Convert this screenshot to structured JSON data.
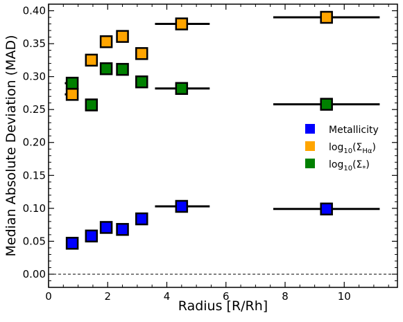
{
  "chart_data": {
    "type": "scatter",
    "title": "",
    "xlabel": "Radius [R/Rh]",
    "ylabel": "Median Absolute Deviation (MAD)",
    "xlim": [
      0,
      11.8
    ],
    "ylim": [
      -0.02,
      0.41
    ],
    "xticks": [
      0,
      2,
      4,
      6,
      8,
      10
    ],
    "yticks": [
      0.0,
      0.05,
      0.1,
      0.15,
      0.2,
      0.25,
      0.3,
      0.35,
      0.4
    ],
    "xtick_labels": [
      "0",
      "2",
      "4",
      "6",
      "8",
      "10"
    ],
    "ytick_labels": [
      "0.00",
      "0.05",
      "0.10",
      "0.15",
      "0.20",
      "0.25",
      "0.30",
      "0.35",
      "0.40"
    ],
    "reference_line": {
      "y": 0.0,
      "style": "dashed"
    },
    "grid": false,
    "legend_position": "center-right",
    "series": [
      {
        "name": "Metallicity",
        "color": "#0000ff",
        "points": [
          {
            "x": 0.8,
            "y": 0.047,
            "xerr": [
              0.7,
              1.0
            ]
          },
          {
            "x": 1.45,
            "y": 0.058
          },
          {
            "x": 1.95,
            "y": 0.071
          },
          {
            "x": 2.5,
            "y": 0.068
          },
          {
            "x": 3.15,
            "y": 0.084,
            "xerr": [
              3.05,
              3.35
            ]
          },
          {
            "x": 4.5,
            "y": 0.103,
            "xerr": [
              3.6,
              5.45
            ]
          },
          {
            "x": 9.4,
            "y": 0.099,
            "xerr": [
              7.6,
              11.2
            ]
          }
        ]
      },
      {
        "name": "log10(ΣHα)",
        "legend_main": "log",
        "legend_sub": "10",
        "legend_rest_open": "(Σ",
        "legend_sub2": "Hα",
        "legend_close": ")",
        "color": "#ffa500",
        "points": [
          {
            "x": 0.8,
            "y": 0.273,
            "xerr": [
              0.55,
              1.0
            ]
          },
          {
            "x": 1.45,
            "y": 0.325
          },
          {
            "x": 1.95,
            "y": 0.353
          },
          {
            "x": 2.5,
            "y": 0.361
          },
          {
            "x": 3.15,
            "y": 0.335,
            "xerr": [
              3.05,
              3.35
            ]
          },
          {
            "x": 4.5,
            "y": 0.38,
            "xerr": [
              3.6,
              5.45
            ]
          },
          {
            "x": 9.4,
            "y": 0.39,
            "xerr": [
              7.6,
              11.2
            ]
          }
        ]
      },
      {
        "name": "log10(Σ*)",
        "legend_main": "log",
        "legend_sub": "10",
        "legend_rest_open": "(Σ",
        "legend_sub2": "*",
        "legend_close": ")",
        "color": "#008000",
        "points": [
          {
            "x": 0.8,
            "y": 0.29,
            "xerr": [
              0.55,
              1.0
            ]
          },
          {
            "x": 1.45,
            "y": 0.257
          },
          {
            "x": 1.95,
            "y": 0.312
          },
          {
            "x": 2.5,
            "y": 0.311
          },
          {
            "x": 3.15,
            "y": 0.292,
            "xerr": [
              3.05,
              3.35
            ]
          },
          {
            "x": 4.5,
            "y": 0.282,
            "xerr": [
              3.6,
              5.45
            ]
          },
          {
            "x": 9.4,
            "y": 0.258,
            "xerr": [
              7.6,
              11.2
            ]
          }
        ]
      }
    ]
  }
}
